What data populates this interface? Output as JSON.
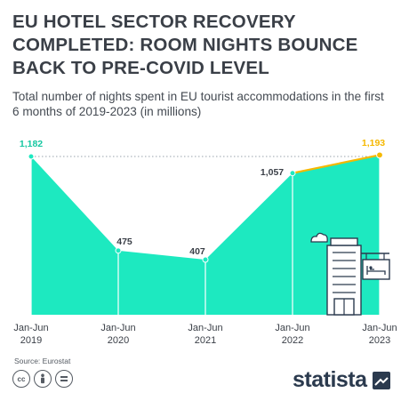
{
  "header": {
    "title": "EU HOTEL SECTOR RECOVERY COMPLETED: ROOM NIGHTS BOUNCE BACK TO PRE-COVID LEVEL",
    "subtitle": "Total number of nights spent in EU tourist accommodations in the first 6 months of 2019-2023 (in millions)"
  },
  "footer": {
    "source": "Source: Eurostat",
    "brand": "statista",
    "license_icons": [
      "cc-icon",
      "person-icon",
      "equals-icon"
    ]
  },
  "colors": {
    "area": "#1de9c0",
    "highlight_line": "#f5b800",
    "value_label": "#16c7a1",
    "value_label_highlight": "#f5b800",
    "text": "#3a3f47"
  },
  "chart_data": {
    "type": "area",
    "title": "EU HOTEL SECTOR RECOVERY COMPLETED: ROOM NIGHTS BOUNCE BACK TO PRE-COVID LEVEL",
    "subtitle": "Total number of nights spent in EU tourist accommodations in the first 6 months of 2019-2023 (in millions)",
    "categories": [
      [
        "Jan-Jun",
        "2019"
      ],
      [
        "Jan-Jun",
        "2020"
      ],
      [
        "Jan-Jun",
        "2021"
      ],
      [
        "Jan-Jun",
        "2022"
      ],
      [
        "Jan-Jun",
        "2023"
      ]
    ],
    "values": [
      1182,
      475,
      407,
      1057,
      1193
    ],
    "value_labels": [
      "1,182",
      "475",
      "407",
      "1,057",
      "1,193"
    ],
    "highlight_index": 4,
    "reference_line": {
      "value": 1182,
      "style": "dotted"
    },
    "grid": false,
    "legend": "none",
    "ylim": [
      0,
      1250
    ]
  }
}
